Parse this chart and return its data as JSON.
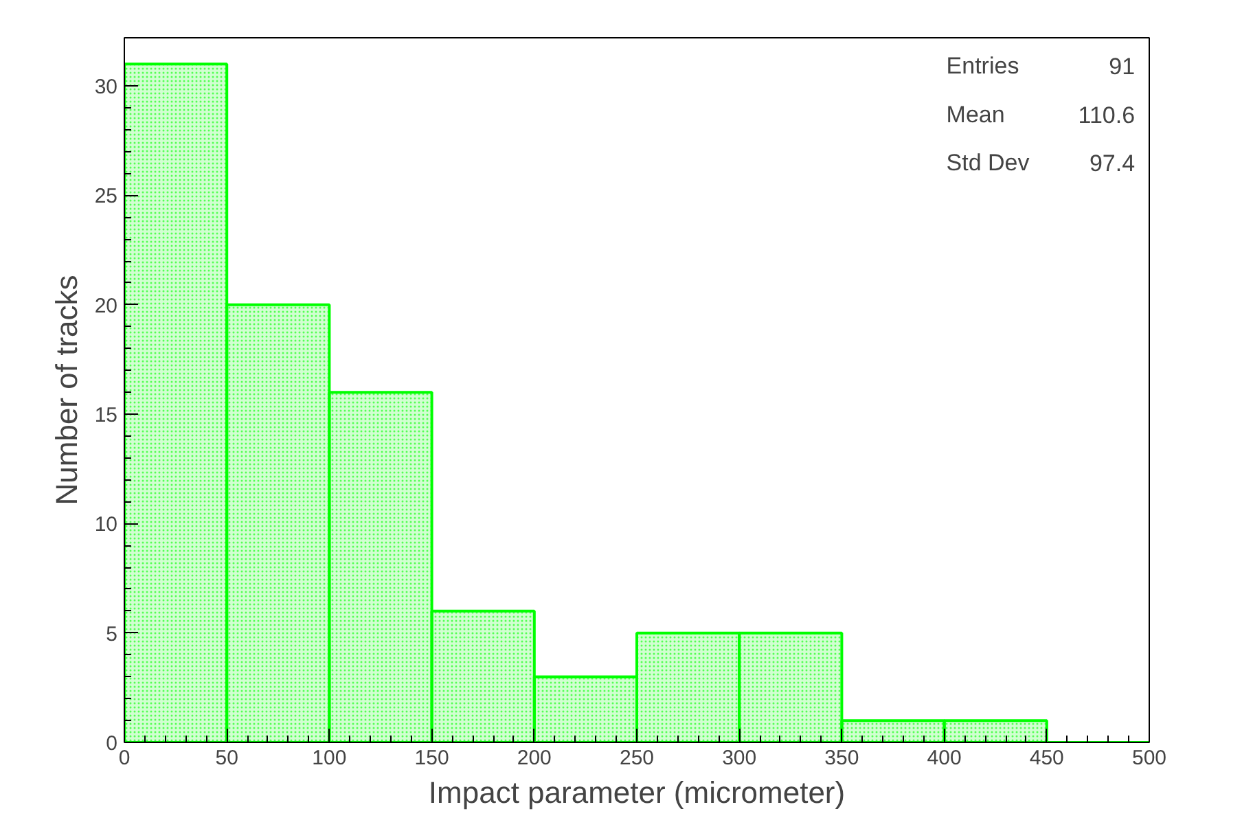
{
  "chart_data": {
    "type": "histogram",
    "xlabel": "Impact parameter (micrometer)",
    "ylabel": "Number of tracks",
    "bins": [
      0,
      50,
      100,
      150,
      200,
      250,
      300,
      350,
      400,
      450,
      500
    ],
    "values": [
      31,
      20,
      16,
      6,
      3,
      5,
      5,
      1,
      1,
      0
    ],
    "color": "#00ff00",
    "xlim": [
      0,
      500
    ],
    "ylim": [
      0,
      32.2
    ],
    "xticks": [
      0,
      50,
      100,
      150,
      200,
      250,
      300,
      350,
      400,
      450,
      500
    ],
    "yticks": [
      0,
      5,
      10,
      15,
      20,
      25,
      30
    ],
    "grid": false,
    "annotations": [
      "Entries",
      "91",
      "Mean",
      "110.6",
      "Std Dev",
      "97.4"
    ]
  }
}
